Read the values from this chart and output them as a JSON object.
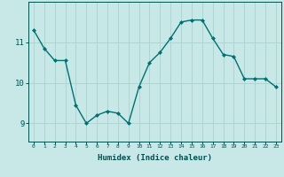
{
  "x": [
    0,
    1,
    2,
    3,
    4,
    5,
    6,
    7,
    8,
    9,
    10,
    11,
    12,
    13,
    14,
    15,
    16,
    17,
    18,
    19,
    20,
    21,
    22,
    23
  ],
  "y": [
    11.3,
    10.85,
    10.55,
    10.55,
    9.45,
    9.0,
    9.2,
    9.3,
    9.25,
    9.0,
    9.9,
    10.5,
    10.75,
    11.1,
    11.5,
    11.55,
    11.55,
    11.1,
    10.7,
    10.65,
    10.1,
    10.1,
    10.1,
    9.9
  ],
  "line_color": "#007070",
  "bg_color": "#c8e8e8",
  "grid_color": "#aed4d4",
  "xlabel": "Humidex (Indice chaleur)",
  "yticks": [
    9,
    10,
    11
  ],
  "xlim": [
    -0.5,
    23.5
  ],
  "ylim": [
    8.55,
    12.0
  ],
  "label_color": "#005050",
  "tick_color": "#005050",
  "axis_color": "#005050"
}
